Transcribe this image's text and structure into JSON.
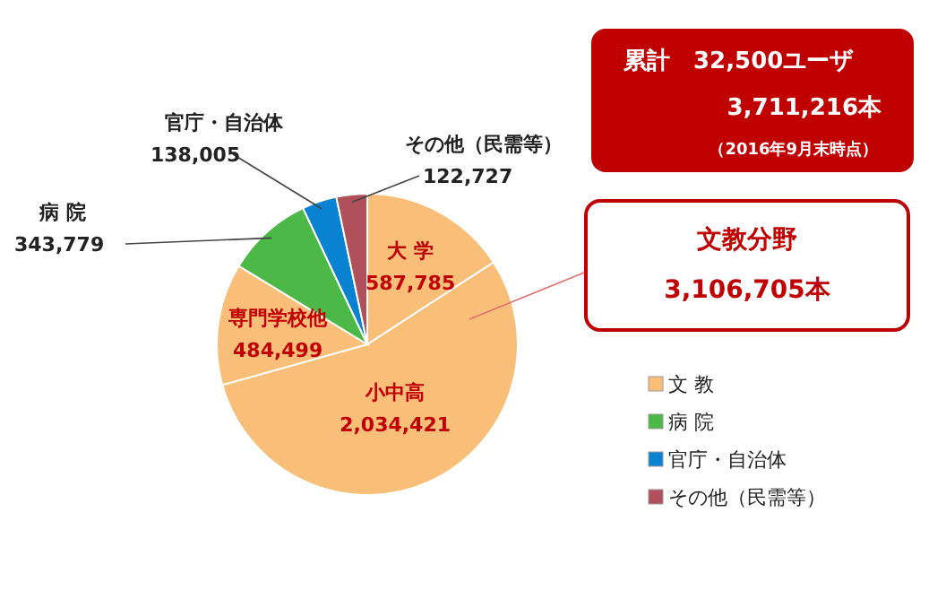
{
  "chart_data": {
    "type": "pie",
    "categories": [
      "大 学",
      "小中高",
      "専門学校他",
      "病 院",
      "官庁・自治体",
      "その他（民需等）"
    ],
    "values": [
      587785,
      2034421,
      484499,
      343779,
      138005,
      122727
    ],
    "value_labels": [
      "587,785",
      "2,034,421",
      "484,499",
      "343,779",
      "138,005",
      "122,727"
    ],
    "colors": [
      "#f9bf78",
      "#f9bf78",
      "#f9bf78",
      "#4cb848",
      "#0a82d2",
      "#b0505a"
    ],
    "annotations": [
      "累計　32,500ユーザ",
      "3,711,216本",
      "（2016年9月末時点）",
      "文教分野",
      "3,106,705本",
      "文 教",
      "病 院",
      "官庁・自治体",
      "その他（民需等）"
    ]
  }
}
